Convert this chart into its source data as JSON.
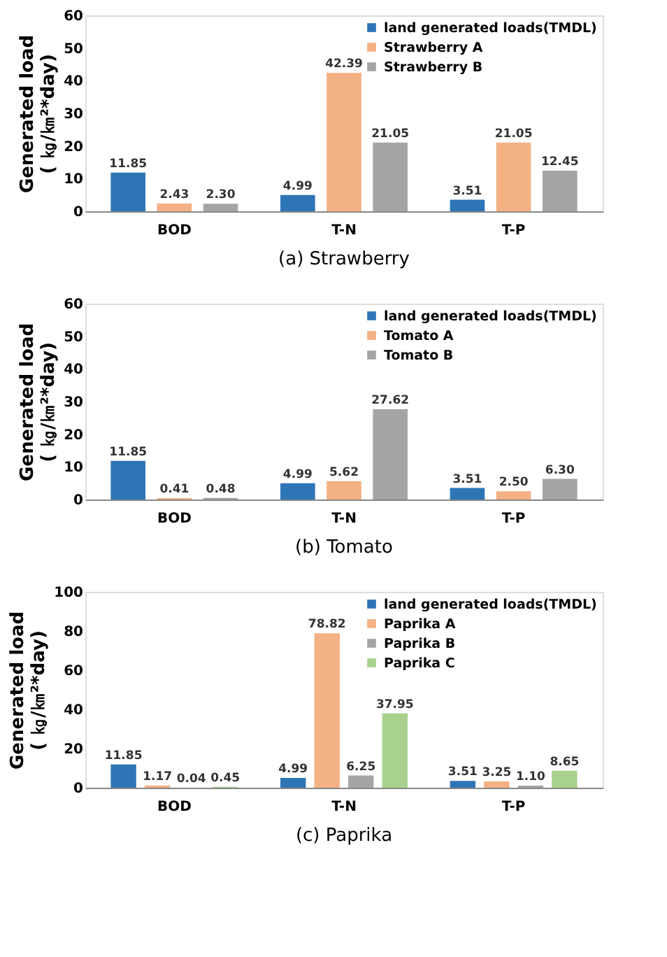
{
  "chart_data": [
    {
      "type": "bar",
      "title": "(a)  Strawberry",
      "ylabel": "Generated load\n( ㎏/㎞²*day)",
      "categories": [
        "BOD",
        "T-N",
        "T-P"
      ],
      "ylim": [
        0,
        60
      ],
      "yticks": [
        0,
        10,
        20,
        30,
        40,
        50,
        60
      ],
      "grid": false,
      "legend": "top right",
      "series": [
        {
          "name": "land generated loads(TMDL)",
          "color": "#2e75b6",
          "values": [
            11.85,
            4.99,
            3.51
          ],
          "value_labels": [
            "11.85",
            "4.99",
            "3.51"
          ]
        },
        {
          "name": "Strawberry A",
          "color": "#f4b183",
          "values": [
            2.43,
            42.39,
            21.05
          ],
          "value_labels": [
            "2.43",
            "42.39",
            "21.05"
          ]
        },
        {
          "name": "Strawberry B",
          "color": "#a5a5a5",
          "values": [
            2.3,
            21.05,
            12.45
          ],
          "value_labels": [
            "2.30",
            "21.05",
            "12.45"
          ]
        }
      ]
    },
    {
      "type": "bar",
      "title": "(b)  Tomato",
      "ylabel": "Generated load\n( ㎏/㎞²*day)",
      "categories": [
        "BOD",
        "T-N",
        "T-P"
      ],
      "ylim": [
        0,
        60
      ],
      "yticks": [
        0,
        10,
        20,
        30,
        40,
        50,
        60
      ],
      "grid": false,
      "legend": "top right",
      "series": [
        {
          "name": "land generated loads(TMDL)",
          "color": "#2e75b6",
          "values": [
            11.85,
            4.99,
            3.51
          ],
          "value_labels": [
            "11.85",
            "4.99",
            "3.51"
          ]
        },
        {
          "name": "Tomato A",
          "color": "#f4b183",
          "values": [
            0.41,
            5.62,
            2.5
          ],
          "value_labels": [
            "0.41",
            "5.62",
            "2.50"
          ]
        },
        {
          "name": "Tomato B",
          "color": "#a5a5a5",
          "values": [
            0.48,
            27.62,
            6.3
          ],
          "value_labels": [
            "0.48",
            "27.62",
            "6.30"
          ]
        }
      ]
    },
    {
      "type": "bar",
      "title": "(c)  Paprika",
      "ylabel": "Generated load\n( ㎏/㎞²*day)",
      "categories": [
        "BOD",
        "T-N",
        "T-P"
      ],
      "ylim": [
        0,
        100
      ],
      "yticks": [
        0,
        20,
        40,
        60,
        80,
        100
      ],
      "grid": false,
      "legend": "top right",
      "series": [
        {
          "name": "land generated loads(TMDL)",
          "color": "#2e75b6",
          "values": [
            11.85,
            4.99,
            3.51
          ],
          "value_labels": [
            "11.85",
            "4.99",
            "3.51"
          ]
        },
        {
          "name": "Paprika A",
          "color": "#f4b183",
          "values": [
            1.17,
            78.82,
            3.25
          ],
          "value_labels": [
            "1.17",
            "78.82",
            "3.25"
          ]
        },
        {
          "name": "Paprika B",
          "color": "#a5a5a5",
          "values": [
            0.04,
            6.25,
            1.1
          ],
          "value_labels": [
            "0.04",
            "6.25",
            "1.10"
          ]
        },
        {
          "name": "Paprika C",
          "color": "#a9d18e",
          "values": [
            0.45,
            37.95,
            8.65
          ],
          "value_labels": [
            "0.45",
            "37.95",
            "8.65"
          ]
        }
      ]
    }
  ]
}
